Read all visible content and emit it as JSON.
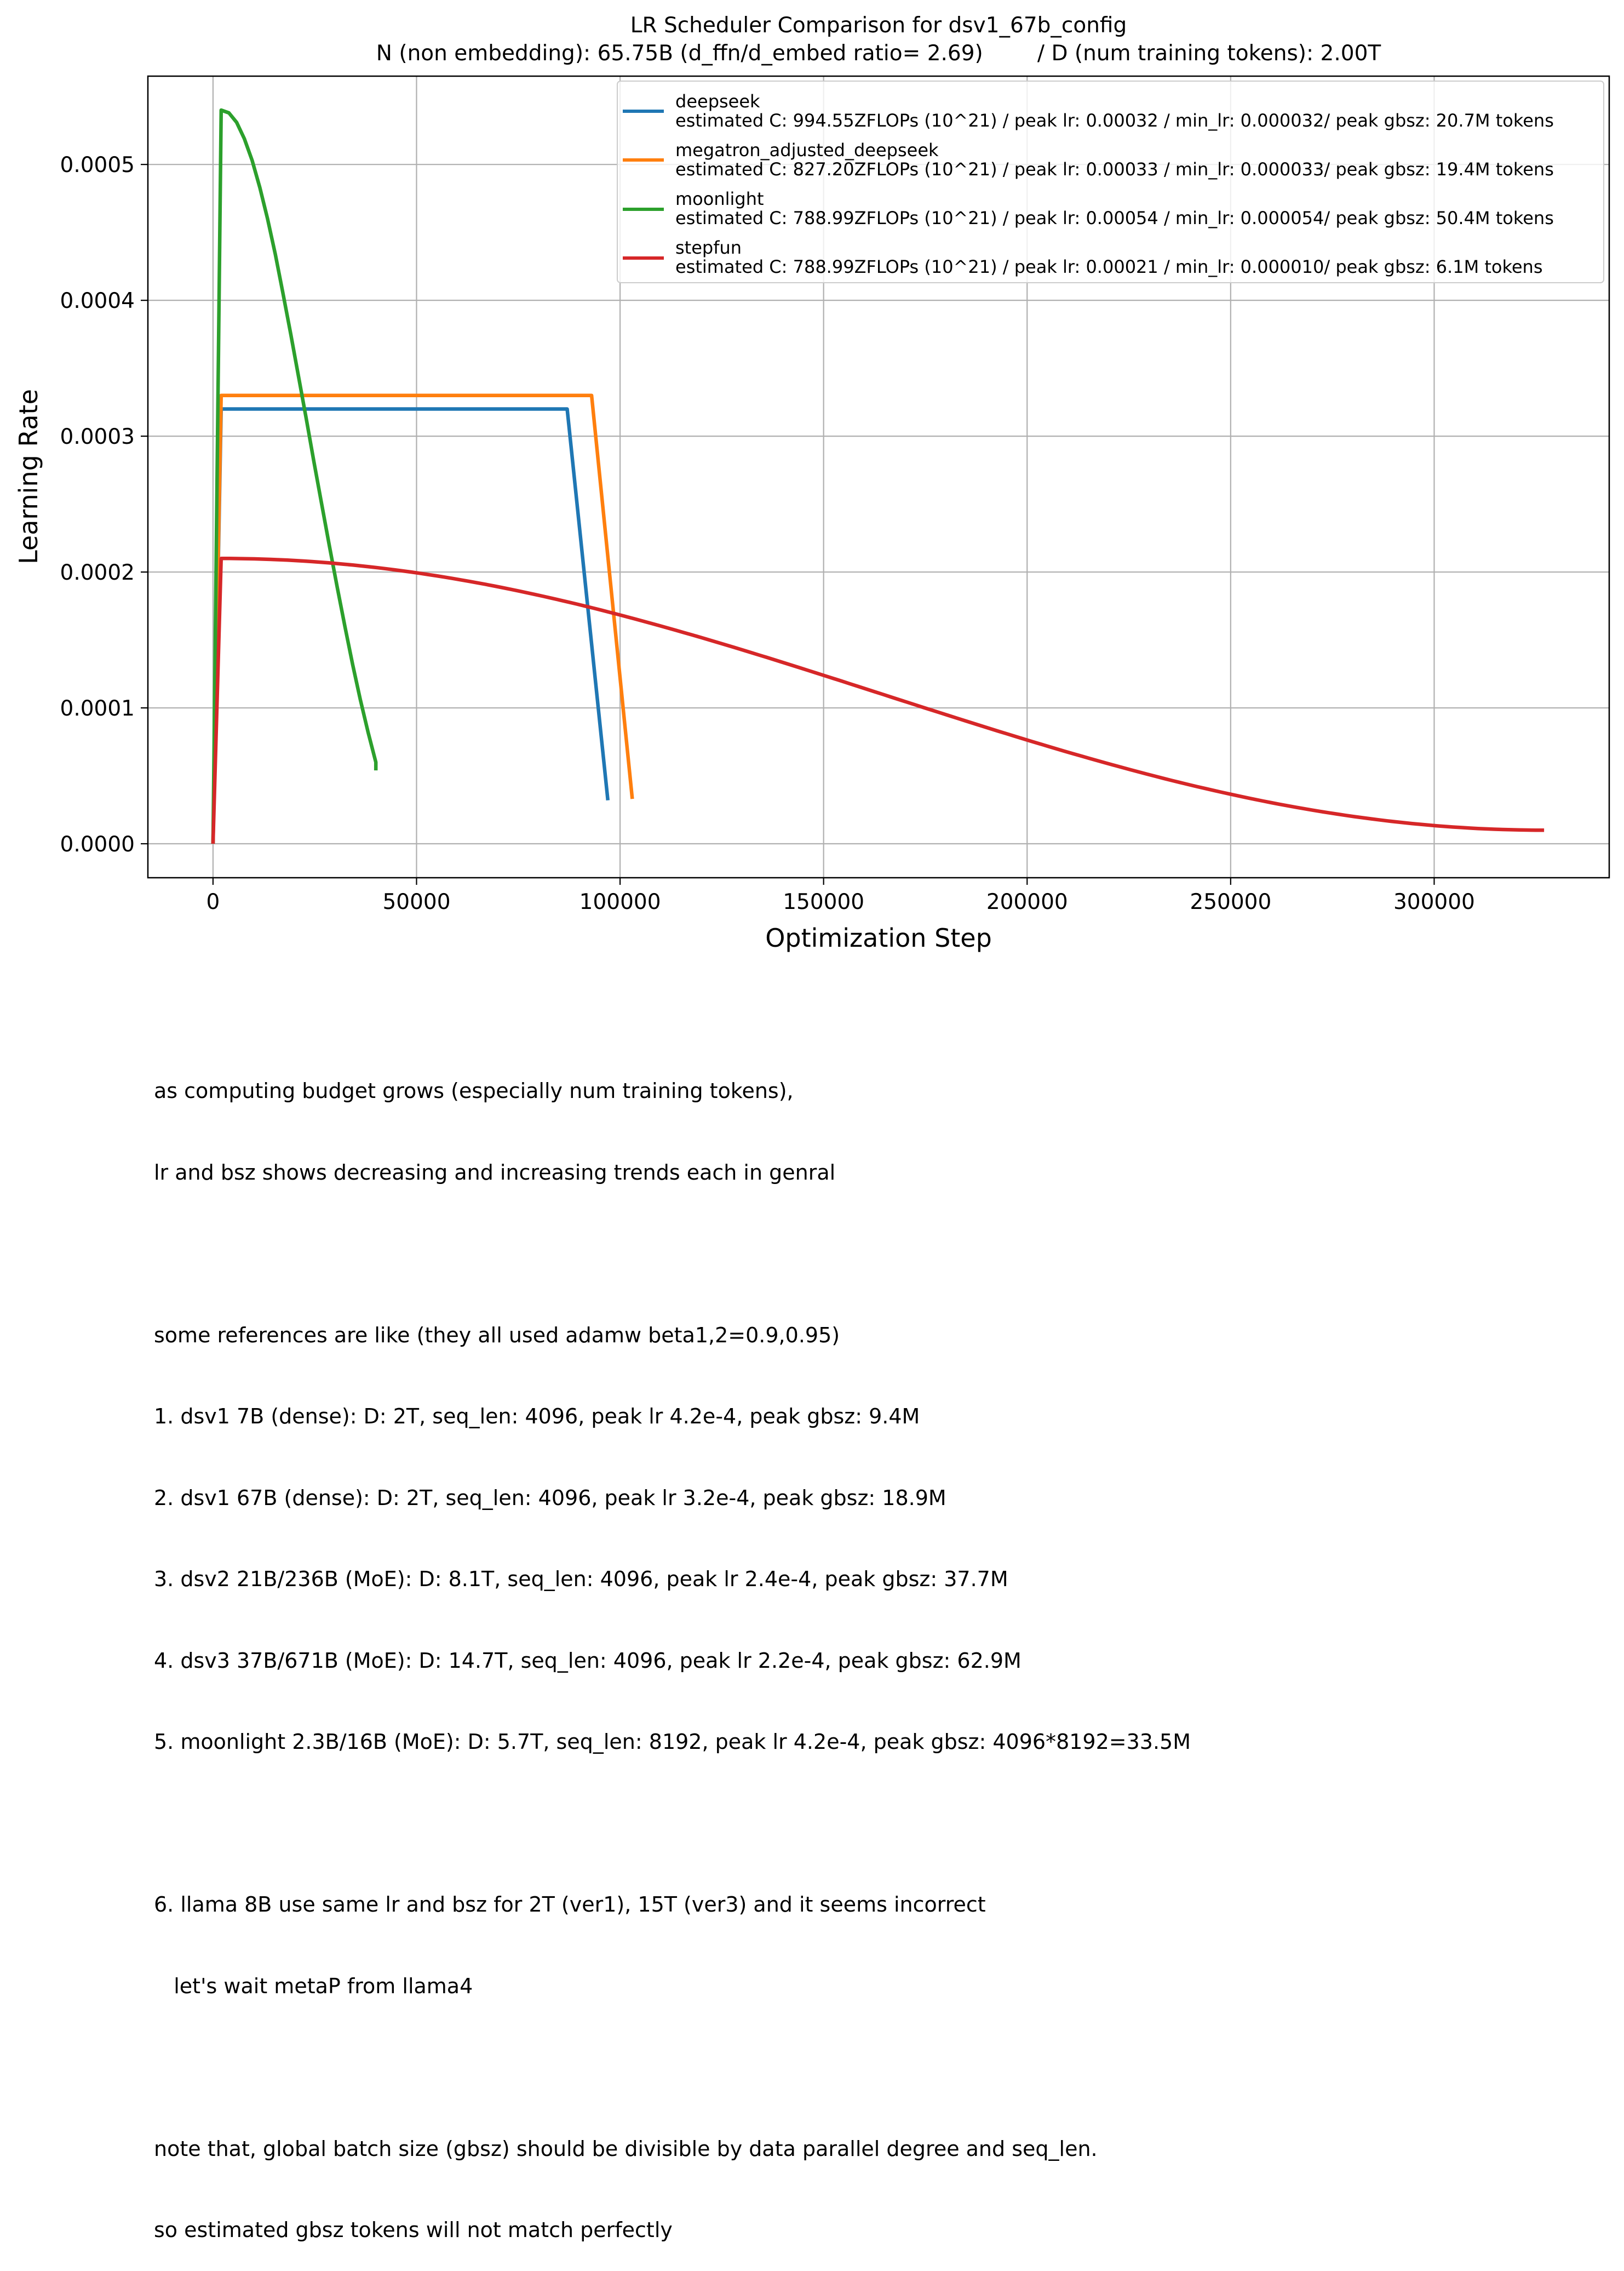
{
  "chart_data": {
    "type": "line",
    "title": "LR Scheduler Comparison for dsv1_67b_config",
    "subtitle": "N (non embedding): 65.75B (d_ffn/d_embed ratio= 2.69)        / D (num training tokens): 2.00T",
    "xlabel": "Optimization Step",
    "ylabel": "Learning Rate",
    "xlim": [
      -16000,
      343000
    ],
    "ylim": [
      -2.5e-05,
      0.000565
    ],
    "xticks": [
      0,
      50000,
      100000,
      150000,
      200000,
      250000,
      300000
    ],
    "xtick_labels": [
      "0",
      "50000",
      "100000",
      "150000",
      "200000",
      "250000",
      "300000"
    ],
    "yticks": [
      0,
      0.0001,
      0.0002,
      0.0003,
      0.0004,
      0.0005
    ],
    "ytick_labels": [
      "0.0000",
      "0.0001",
      "0.0002",
      "0.0003",
      "0.0004",
      "0.0005"
    ],
    "grid": true,
    "legend_position": "top-right",
    "series": [
      {
        "name": "deepseek",
        "label": "estimated C: 994.55ZFLOPs (10^21) / peak lr: 0.00032 / min_lr: 0.000032/ peak gbsz: 20.7M tokens",
        "color": "#1f77b4",
        "points": [
          [
            0,
            0
          ],
          [
            2000,
            0.00032
          ],
          [
            87000,
            0.00032
          ],
          [
            97000,
            3.2e-05
          ]
        ]
      },
      {
        "name": "megatron_adjusted_deepseek",
        "label": "estimated C: 827.20ZFLOPs (10^21) / peak lr: 0.00033 / min_lr: 0.000033/ peak gbsz: 19.4M tokens",
        "color": "#ff7f0e",
        "points": [
          [
            0,
            0
          ],
          [
            2000,
            0.00033
          ],
          [
            93000,
            0.00033
          ],
          [
            103000,
            3.3e-05
          ]
        ]
      },
      {
        "name": "moonlight",
        "label": "estimated C: 788.99ZFLOPs (10^21) / peak lr: 0.00054 / min_lr: 0.000054/ peak gbsz: 50.4M tokens",
        "color": "#2ca02c",
        "points": [
          [
            0,
            0
          ],
          [
            2000,
            0.00054
          ],
          [
            3900,
            0.000538
          ],
          [
            5800,
            0.000531
          ],
          [
            7700,
            0.000519
          ],
          [
            9600,
            0.000503
          ],
          [
            11500,
            0.000483
          ],
          [
            13400,
            0.00046
          ],
          [
            15300,
            0.000434
          ],
          [
            17200,
            0.000405
          ],
          [
            19100,
            0.000375
          ],
          [
            21000,
            0.000344
          ],
          [
            22900,
            0.000313
          ],
          [
            24800,
            0.000281
          ],
          [
            26700,
            0.00025
          ],
          [
            28600,
            0.000219
          ],
          [
            30500,
            0.000189
          ],
          [
            32400,
            0.00016
          ],
          [
            34300,
            0.000132
          ],
          [
            36200,
            0.000106
          ],
          [
            38100,
            8.2e-05
          ],
          [
            40000,
            6e-05
          ],
          [
            40000,
            5.4e-05
          ]
        ]
      },
      {
        "name": "stepfun",
        "label": "estimated C: 788.99ZFLOPs (10^21) / peak lr: 0.00021 / min_lr: 0.000010/ peak gbsz: 6.1M tokens",
        "color": "#d62728",
        "cosine": {
          "warmup_end": 2000,
          "end": 327000,
          "peak": 0.00021,
          "min": 1e-05
        }
      }
    ]
  },
  "notes": [
    "as computing budget grows (especially num training tokens),",
    "lr and bsz shows decreasing and increasing trends each in genral",
    "",
    "some references are like (they all used adamw beta1,2=0.9,0.95)",
    "1. dsv1 7B (dense): D: 2T, seq_len: 4096, peak lr 4.2e-4, peak gbsz: 9.4M",
    "2. dsv1 67B (dense): D: 2T, seq_len: 4096, peak lr 3.2e-4, peak gbsz: 18.9M",
    "3. dsv2 21B/236B (MoE): D: 8.1T, seq_len: 4096, peak lr 2.4e-4, peak gbsz: 37.7M",
    "4. dsv3 37B/671B (MoE): D: 14.7T, seq_len: 4096, peak lr 2.2e-4, peak gbsz: 62.9M",
    "5. moonlight 2.3B/16B (MoE): D: 5.7T, seq_len: 8192, peak lr 4.2e-4, peak gbsz: 4096*8192=33.5M",
    "",
    "6. llama 8B use same lr and bsz for 2T (ver1), 15T (ver3) and it seems incorrect",
    "   let's wait metaP from llama4",
    "",
    "note that, global batch size (gbsz) should be divisible by data parallel degree and seq_len.",
    "so estimated gbsz tokens will not match perfectly"
  ]
}
